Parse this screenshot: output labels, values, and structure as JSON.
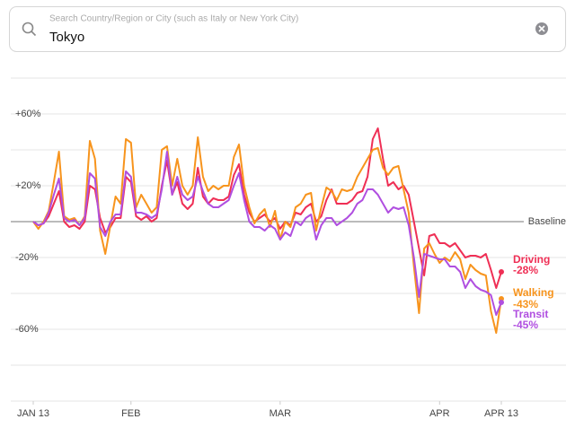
{
  "search": {
    "placeholder": "Search Country/Region or City (such as Italy or New York City)",
    "query": "Tokyo"
  },
  "chart_data": {
    "type": "line",
    "xlim": [
      0,
      91
    ],
    "xticks": [
      {
        "value": 0,
        "label": "JAN 13"
      },
      {
        "value": 19,
        "label": "FEB"
      },
      {
        "value": 48,
        "label": "MAR"
      },
      {
        "value": 79,
        "label": "APR"
      },
      {
        "value": 91,
        "label": "APR 13"
      }
    ],
    "ylim": [
      -100,
      80
    ],
    "yticks": [
      {
        "value": 60,
        "label": "+60%"
      },
      {
        "value": 20,
        "label": "+20%"
      },
      {
        "value": -20,
        "label": "-20%"
      },
      {
        "value": -60,
        "label": "-60%"
      }
    ],
    "ygrid": [
      80,
      60,
      40,
      20,
      -20,
      -40,
      -60,
      -80,
      -100
    ],
    "baseline": 0,
    "baseline_label": "Baseline",
    "series": [
      {
        "name": "Driving",
        "color": "#ef2f55",
        "values": [
          0,
          -2,
          -1,
          3,
          10,
          17,
          0,
          -3,
          -2,
          -4,
          0,
          20,
          18,
          2,
          -6,
          -3,
          2,
          2,
          25,
          22,
          3,
          1,
          3,
          0,
          2,
          20,
          34,
          15,
          22,
          10,
          7,
          10,
          30,
          14,
          10,
          13,
          12,
          12,
          14,
          26,
          32,
          15,
          5,
          0,
          2,
          4,
          0,
          2,
          -4,
          0,
          -2,
          5,
          4,
          8,
          10,
          0,
          3,
          12,
          18,
          10,
          10,
          10,
          12,
          16,
          17,
          25,
          46,
          52,
          35,
          20,
          22,
          18,
          20,
          15,
          0,
          -15,
          -30,
          -8,
          -7,
          -12,
          -12,
          -14,
          -12,
          -16,
          -20,
          -19,
          -19,
          -20,
          -18,
          -27,
          -37,
          -28
        ],
        "value_labels": [
          null,
          null,
          null,
          null,
          null,
          null,
          null,
          null,
          null,
          null,
          null,
          null,
          null,
          null,
          null,
          null,
          null,
          null,
          null,
          null,
          null,
          null,
          null,
          null,
          null,
          null,
          null,
          null,
          null,
          null,
          null,
          null,
          null,
          null,
          null,
          null,
          null,
          null,
          null,
          null,
          null,
          null,
          null,
          null,
          null,
          null,
          null,
          null,
          null,
          null,
          null,
          null,
          null,
          null,
          null,
          null,
          null,
          null,
          null,
          null,
          null,
          null,
          null,
          null,
          null,
          null,
          null,
          null,
          null,
          null,
          null,
          null,
          null,
          null,
          null,
          null,
          null,
          null,
          null,
          null,
          null,
          null,
          null,
          null,
          null,
          null,
          null,
          null,
          null,
          null,
          null,
          "-28%"
        ]
      },
      {
        "name": "Walking",
        "color": "#f7941d",
        "values": [
          0,
          -4,
          0,
          6,
          22,
          39,
          3,
          1,
          2,
          -2,
          3,
          45,
          35,
          -5,
          -18,
          -2,
          14,
          10,
          46,
          44,
          8,
          15,
          10,
          5,
          8,
          40,
          42,
          20,
          35,
          20,
          15,
          20,
          47,
          25,
          17,
          20,
          18,
          20,
          20,
          36,
          43,
          20,
          8,
          -1,
          4,
          7,
          -3,
          6,
          -10,
          0,
          -3,
          8,
          10,
          15,
          16,
          -5,
          8,
          19,
          17,
          12,
          18,
          17,
          18,
          25,
          30,
          35,
          40,
          41,
          30,
          26,
          30,
          31,
          18,
          5,
          -25,
          -51,
          -15,
          -12,
          -18,
          -23,
          -20,
          -22,
          -17,
          -21,
          -32,
          -24,
          -27,
          -29,
          -30,
          -50,
          -62,
          -43
        ],
        "value_labels": [
          null,
          null,
          null,
          null,
          null,
          null,
          null,
          null,
          null,
          null,
          null,
          null,
          null,
          null,
          null,
          null,
          null,
          null,
          null,
          null,
          null,
          null,
          null,
          null,
          null,
          null,
          null,
          null,
          null,
          null,
          null,
          null,
          null,
          null,
          null,
          null,
          null,
          null,
          null,
          null,
          null,
          null,
          null,
          null,
          null,
          null,
          null,
          null,
          null,
          null,
          null,
          null,
          null,
          null,
          null,
          null,
          null,
          null,
          null,
          null,
          null,
          null,
          null,
          null,
          null,
          null,
          null,
          null,
          null,
          null,
          null,
          null,
          null,
          null,
          null,
          null,
          null,
          null,
          null,
          null,
          null,
          null,
          null,
          null,
          null,
          null,
          null,
          null,
          null,
          null,
          null,
          "-43%"
        ]
      },
      {
        "name": "Transit",
        "color": "#b04fe0",
        "values": [
          0,
          -2,
          -1,
          5,
          15,
          24,
          2,
          0,
          1,
          -2,
          2,
          27,
          24,
          -3,
          -8,
          0,
          4,
          4,
          28,
          25,
          5,
          5,
          4,
          2,
          4,
          18,
          39,
          15,
          25,
          15,
          12,
          14,
          25,
          17,
          10,
          8,
          8,
          10,
          12,
          20,
          27,
          12,
          0,
          -3,
          -3,
          -5,
          -2,
          -4,
          -10,
          -6,
          -8,
          0,
          -2,
          2,
          4,
          -10,
          -2,
          2,
          2,
          -2,
          0,
          2,
          5,
          10,
          12,
          18,
          18,
          15,
          10,
          5,
          8,
          7,
          8,
          -2,
          -20,
          -42,
          -18,
          -19,
          -20,
          -21,
          -21,
          -25,
          -25,
          -28,
          -37,
          -32,
          -36,
          -38,
          -39,
          -41,
          -52,
          -45
        ],
        "value_labels": [
          null,
          null,
          null,
          null,
          null,
          null,
          null,
          null,
          null,
          null,
          null,
          null,
          null,
          null,
          null,
          null,
          null,
          null,
          null,
          null,
          null,
          null,
          null,
          null,
          null,
          null,
          null,
          null,
          null,
          null,
          null,
          null,
          null,
          null,
          null,
          null,
          null,
          null,
          null,
          null,
          null,
          null,
          null,
          null,
          null,
          null,
          null,
          null,
          null,
          null,
          null,
          null,
          null,
          null,
          null,
          null,
          null,
          null,
          null,
          null,
          null,
          null,
          null,
          null,
          null,
          null,
          null,
          null,
          null,
          null,
          null,
          null,
          null,
          null,
          null,
          null,
          null,
          null,
          null,
          null,
          null,
          null,
          null,
          null,
          null,
          null,
          null,
          null,
          null,
          null,
          null,
          "-45%"
        ]
      }
    ]
  }
}
